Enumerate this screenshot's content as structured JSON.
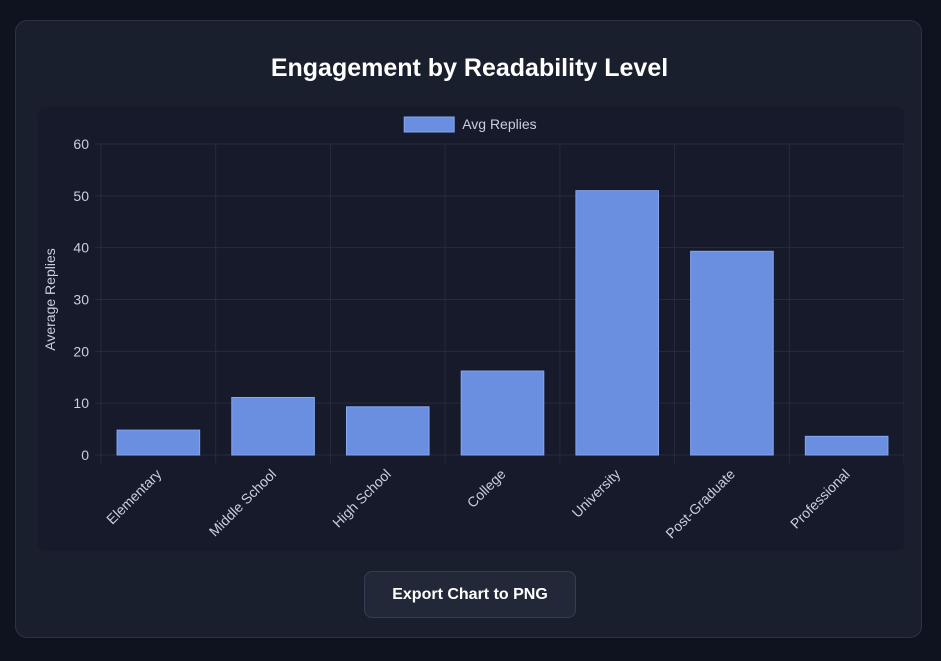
{
  "chart_data": {
    "type": "bar",
    "title": "Engagement by Readability Level",
    "categories": [
      "Elementary",
      "Middle School",
      "High School",
      "College",
      "University",
      "Post-Graduate",
      "Professional"
    ],
    "series": [
      {
        "name": "Avg Replies",
        "values": [
          4.8,
          11.1,
          9.3,
          16.2,
          51.0,
          39.3,
          3.6
        ],
        "color": "#6a8fe0"
      }
    ],
    "xlabel": "",
    "ylabel": "Average Replies",
    "ylim": [
      0,
      60
    ],
    "yticks": [
      0,
      10,
      20,
      30,
      40,
      50,
      60
    ],
    "grid": true,
    "legend_position": "top-center"
  },
  "actions": {
    "export_label": "Export Chart to PNG"
  },
  "colors": {
    "background": "#0f1320",
    "card": "#1a1f2e",
    "panel": "#161a2b",
    "grid": "#262c3d",
    "tick_text": "#c9cfdc",
    "bar_fill": "#6a8fe0",
    "bar_stroke": "#86a6ee"
  }
}
